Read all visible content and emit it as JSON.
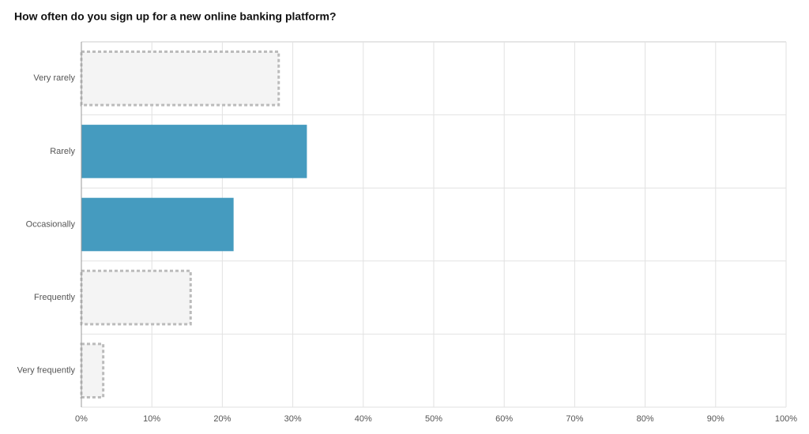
{
  "chart_data": {
    "type": "hbar",
    "title": "How often do you sign up for a new online banking platform?",
    "categories": [
      "Very rarely",
      "Rarely",
      "Occasionally",
      "Frequently",
      "Very frequently"
    ],
    "values": [
      28,
      32,
      21.6,
      15.5,
      3.1
    ],
    "colors": [
      "#f4f4f4",
      "#459bbf",
      "#459bbf",
      "#f4f4f4",
      "#f4f4f4"
    ],
    "bar_styles": [
      "dashed",
      "solid",
      "solid",
      "dashed",
      "dashed"
    ],
    "xlim": [
      0,
      100
    ],
    "xticks": [
      {
        "value": 0,
        "label": "0%"
      },
      {
        "value": 10,
        "label": "10%"
      },
      {
        "value": 20,
        "label": "20%"
      },
      {
        "value": 30,
        "label": "30%"
      },
      {
        "value": 40,
        "label": "40%"
      },
      {
        "value": 50,
        "label": "50%"
      },
      {
        "value": 60,
        "label": "60%"
      },
      {
        "value": 70,
        "label": "70%"
      },
      {
        "value": 80,
        "label": "80%"
      },
      {
        "value": 90,
        "label": "90%"
      },
      {
        "value": 100,
        "label": "100%"
      }
    ],
    "grid": true
  }
}
